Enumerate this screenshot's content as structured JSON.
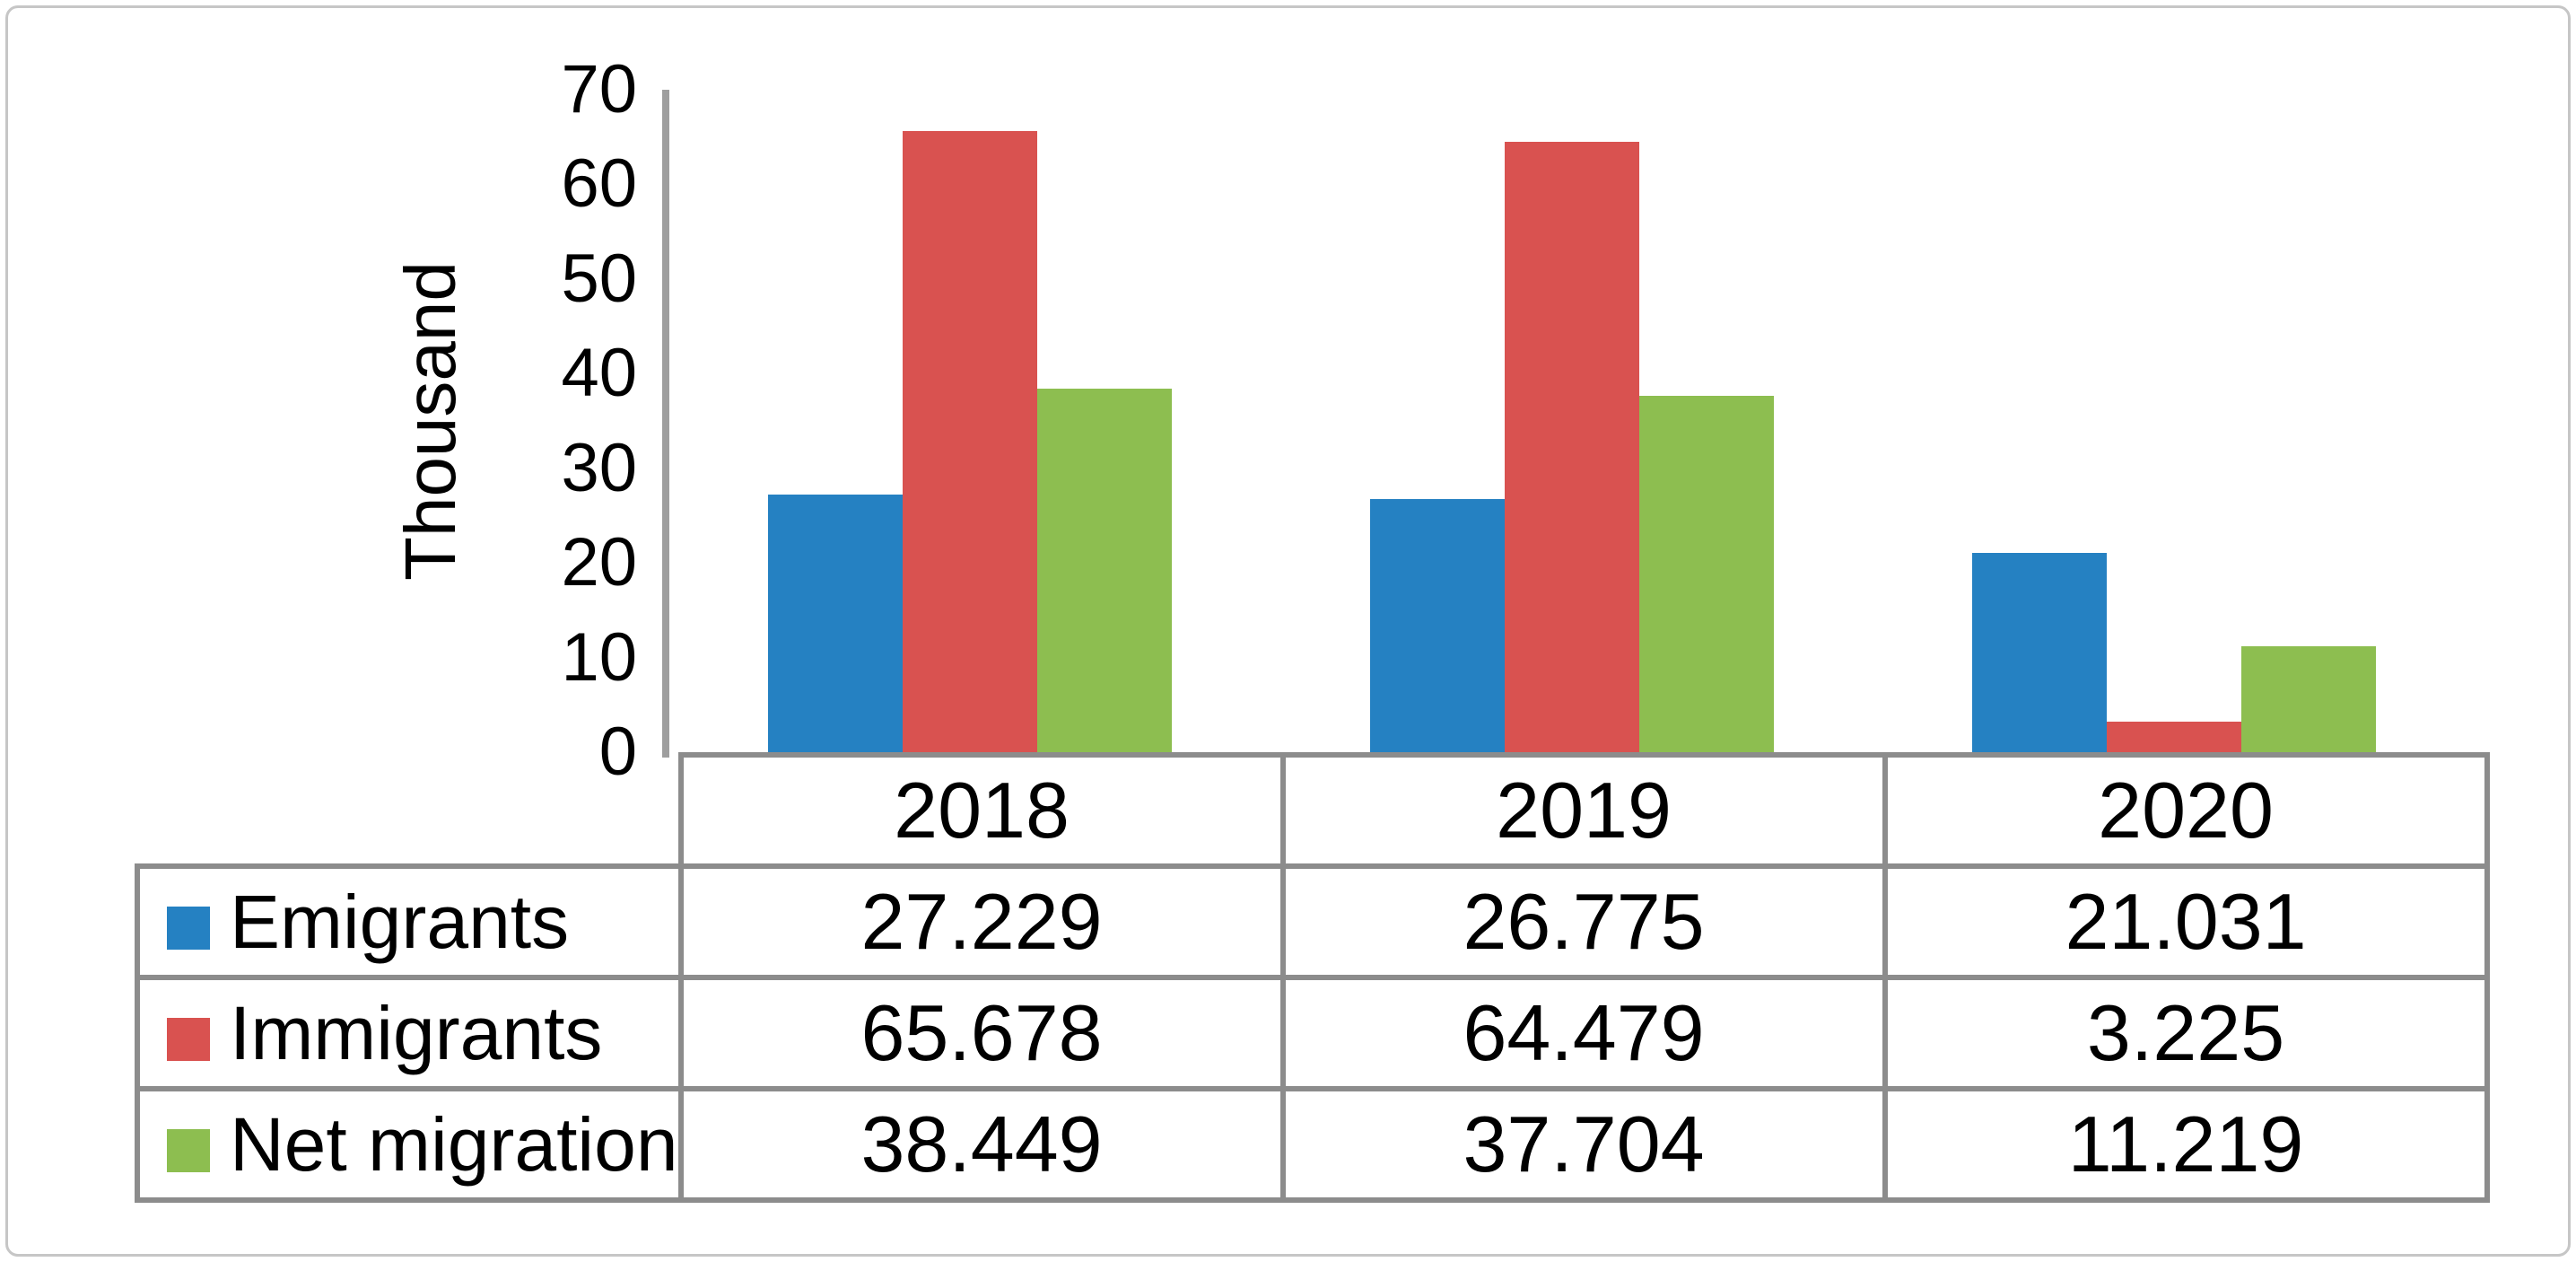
{
  "frame": {
    "border_color": "#c6c6c6",
    "background": "#ffffff"
  },
  "chart_data": {
    "type": "bar",
    "title": "",
    "ylabel": "Thousand",
    "categories": [
      "2018",
      "2019",
      "2020"
    ],
    "series": [
      {
        "name": "Emigrants",
        "color": "#2581c2",
        "values": [
          27.229,
          26.775,
          21.031
        ],
        "value_labels": [
          "27.229",
          "26.775",
          "21.031"
        ]
      },
      {
        "name": "Immigrants",
        "color": "#d95250",
        "values": [
          65.678,
          64.479,
          3.225
        ],
        "value_labels": [
          "65.678",
          "64.479",
          "3.225"
        ]
      },
      {
        "name": "Net migration",
        "color": "#8dbe50",
        "values": [
          38.449,
          37.704,
          11.219
        ],
        "value_labels": [
          "38.449",
          "37.704",
          "11.219"
        ]
      }
    ],
    "ylim": [
      0,
      70
    ],
    "yticks": [
      0,
      10,
      20,
      30,
      40,
      50,
      60,
      70
    ],
    "grid": false,
    "legend_position": "table-left",
    "axis_color": "#9e9e9e",
    "table_border_color": "#8c8c8c",
    "text_color": "#000000"
  }
}
